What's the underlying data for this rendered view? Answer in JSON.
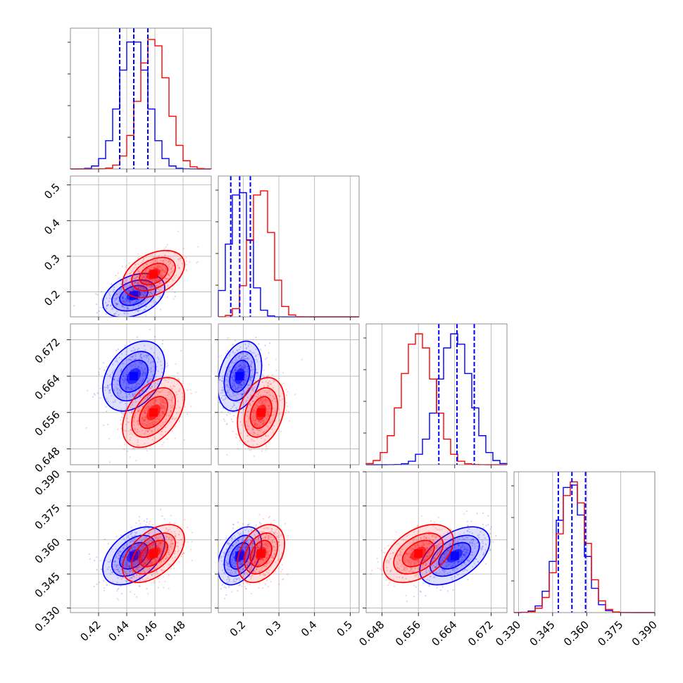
{
  "chart_data": {
    "type": "corner",
    "n_params": 4,
    "series": [
      {
        "name": "",
        "color": "#0000ff",
        "mean": [
          0.445,
          0.19,
          0.664,
          0.353
        ],
        "sd": [
          0.01,
          0.028,
          0.0035,
          0.0058
        ],
        "corr": [
          [
            1,
            0.35,
            0.35,
            0.45
          ],
          [
            0.35,
            1,
            0.3,
            0.4
          ],
          [
            0.35,
            0.3,
            1,
            0.5
          ],
          [
            0.45,
            0.4,
            0.5,
            1
          ]
        ]
      },
      {
        "name": "",
        "color": "#ff0000",
        "mean": [
          0.459,
          0.25,
          0.656,
          0.354
        ],
        "sd": [
          0.01,
          0.03,
          0.0035,
          0.0058
        ],
        "corr": [
          [
            1,
            0.4,
            0.45,
            0.5
          ],
          [
            0.4,
            1,
            0.3,
            0.35
          ],
          [
            0.45,
            0.3,
            1,
            0.45
          ],
          [
            0.5,
            0.35,
            0.45,
            1
          ]
        ]
      }
    ],
    "quantile_lines": {
      "color": "#0000ff",
      "values": [
        [
          0.435,
          0.445,
          0.455
        ],
        [
          0.165,
          0.19,
          0.22
        ],
        [
          0.6605,
          0.6645,
          0.6683
        ],
        [
          0.3475,
          0.3535,
          0.3595
        ]
      ]
    },
    "axis_ranges": [
      [
        0.4,
        0.5
      ],
      [
        0.13,
        0.525
      ],
      [
        0.6445,
        0.6755
      ],
      [
        0.328,
        0.39
      ]
    ],
    "ticks": {
      "x": [
        {
          "values": [
            0.42,
            0.44,
            0.46,
            0.48
          ],
          "labels": [
            "0.42",
            "0.44",
            "0.46",
            "0.48"
          ]
        },
        {
          "values": [
            0.2,
            0.3,
            0.4,
            0.5
          ],
          "labels": [
            "0.2",
            "0.3",
            "0.4",
            "0.5"
          ]
        },
        {
          "values": [
            0.648,
            0.656,
            0.664,
            0.672
          ],
          "labels": [
            "0.648",
            "0.656",
            "0.664",
            "0.672"
          ]
        },
        {
          "values": [
            0.33,
            0.345,
            0.36,
            0.375,
            0.39
          ],
          "labels": [
            "0.330",
            "0.345",
            "0.360",
            "0.375",
            "0.390"
          ]
        }
      ],
      "y": [
        null,
        {
          "values": [
            0.2,
            0.3,
            0.4,
            0.5
          ],
          "labels": [
            "0.2",
            "0.3",
            "0.4",
            "0.5"
          ]
        },
        {
          "values": [
            0.648,
            0.656,
            0.664,
            0.672
          ],
          "labels": [
            "0.648",
            "0.656",
            "0.664",
            "0.672"
          ]
        },
        {
          "values": [
            0.33,
            0.345,
            0.36,
            0.375,
            0.39
          ],
          "labels": [
            "0.330",
            "0.345",
            "0.360",
            "0.375",
            "0.390"
          ]
        }
      ]
    },
    "grid": true,
    "xlabel": "",
    "ylabel": "",
    "title": ""
  }
}
